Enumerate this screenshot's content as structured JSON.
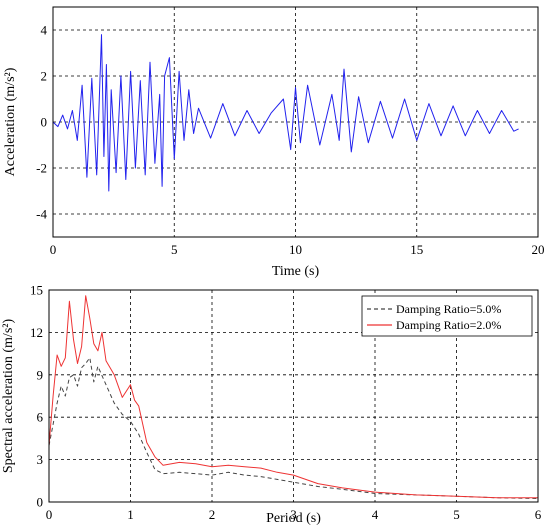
{
  "chart_data": [
    {
      "type": "line",
      "title": "",
      "xlabel": "Time (s)",
      "ylabel": "Acceleration  (m/s²)",
      "xlim": [
        0,
        20
      ],
      "ylim": [
        -5,
        5
      ],
      "xticks": [
        0,
        5,
        10,
        15,
        20
      ],
      "yticks": [
        -4,
        -2,
        0,
        2,
        4
      ],
      "x_tick_labels": [
        "0",
        "5",
        "10",
        "15",
        "20"
      ],
      "y_tick_labels": [
        "-4",
        "-2",
        "0",
        "2",
        "4"
      ],
      "grid": true,
      "colors": {
        "series": "#2222ee",
        "grid": "#000000",
        "frame": "#000000"
      },
      "series": [
        {
          "x": [
            0,
            0.2,
            0.4,
            0.6,
            0.8,
            1.0,
            1.2,
            1.4,
            1.6,
            1.8,
            2.0,
            2.1,
            2.2,
            2.3,
            2.4,
            2.6,
            2.8,
            3.0,
            3.2,
            3.4,
            3.6,
            3.8,
            4.0,
            4.2,
            4.4,
            4.5,
            4.6,
            4.8,
            5.0,
            5.2,
            5.4,
            5.6,
            5.8,
            6.0,
            6.5,
            7.0,
            7.5,
            8.0,
            8.5,
            9.0,
            9.5,
            9.8,
            10.0,
            10.2,
            10.5,
            11.0,
            11.5,
            11.8,
            12.0,
            12.3,
            12.6,
            13.0,
            13.5,
            14.0,
            14.5,
            15.0,
            15.5,
            16.0,
            16.5,
            17.0,
            17.5,
            18.0,
            18.5,
            19.0,
            19.2
          ],
          "values": [
            0,
            -0.2,
            0.3,
            -0.3,
            0.5,
            -0.8,
            1.6,
            -2.4,
            1.9,
            -2.3,
            3.8,
            -1.5,
            2.5,
            -3.0,
            1.4,
            -2.2,
            2.0,
            -2.5,
            2.2,
            -2.0,
            1.8,
            -2.3,
            2.6,
            -1.8,
            1.2,
            -2.8,
            2.0,
            2.8,
            -1.6,
            2.2,
            -0.8,
            1.4,
            -0.5,
            0.6,
            -0.7,
            0.8,
            -0.6,
            0.5,
            -0.5,
            0.4,
            1.0,
            -1.2,
            1.5,
            -0.9,
            1.6,
            -1.0,
            1.2,
            -0.8,
            2.3,
            -1.3,
            1.1,
            -0.9,
            0.9,
            -0.7,
            1.0,
            -0.8,
            0.8,
            -0.6,
            0.7,
            -0.6,
            0.5,
            -0.5,
            0.5,
            -0.4,
            -0.3
          ]
        }
      ]
    },
    {
      "type": "line",
      "title": "",
      "xlabel": "Period (s)",
      "ylabel": "Spectral acceleration (m/s²)",
      "xlim": [
        0,
        6
      ],
      "ylim": [
        0,
        15
      ],
      "xticks": [
        0,
        1,
        2,
        3,
        4,
        5,
        6
      ],
      "yticks": [
        0,
        3,
        6,
        9,
        12,
        15
      ],
      "x_tick_labels": [
        "0",
        "1",
        "2",
        "3",
        "4",
        "5",
        "6"
      ],
      "y_tick_labels": [
        "0",
        "3",
        "6",
        "9",
        "12",
        "15"
      ],
      "grid": true,
      "legend": "top-right",
      "series": [
        {
          "name": "Damping Ratio=5.0%",
          "style": "dashed",
          "color": "#444444",
          "x": [
            0,
            0.05,
            0.1,
            0.15,
            0.2,
            0.25,
            0.3,
            0.35,
            0.4,
            0.45,
            0.5,
            0.55,
            0.6,
            0.7,
            0.8,
            0.9,
            1.0,
            1.1,
            1.2,
            1.3,
            1.4,
            1.6,
            1.8,
            2.0,
            2.2,
            2.4,
            2.6,
            2.8,
            3.0,
            3.3,
            3.6,
            4.0,
            4.5,
            5.0,
            5.5,
            6.0
          ],
          "values": [
            4.0,
            5.5,
            7.0,
            8.2,
            7.5,
            8.8,
            9.0,
            8.2,
            9.5,
            9.8,
            10.2,
            8.5,
            9.6,
            8.3,
            7.0,
            6.2,
            5.7,
            4.8,
            3.5,
            2.3,
            2.0,
            2.1,
            2.0,
            1.9,
            2.1,
            1.9,
            1.8,
            1.6,
            1.4,
            1.1,
            0.9,
            0.6,
            0.5,
            0.4,
            0.3,
            0.25
          ]
        },
        {
          "name": "Damping Ratio=2.0%",
          "style": "solid",
          "color": "#ee3333",
          "x": [
            0,
            0.05,
            0.1,
            0.15,
            0.2,
            0.25,
            0.3,
            0.35,
            0.4,
            0.45,
            0.5,
            0.55,
            0.6,
            0.65,
            0.7,
            0.8,
            0.9,
            1.0,
            1.05,
            1.1,
            1.2,
            1.3,
            1.4,
            1.6,
            1.8,
            2.0,
            2.2,
            2.4,
            2.6,
            2.8,
            3.0,
            3.3,
            3.6,
            4.0,
            4.5,
            5.0,
            5.5,
            6.0
          ],
          "values": [
            4.0,
            7.5,
            10.4,
            9.6,
            10.2,
            14.2,
            11.5,
            9.8,
            11.0,
            14.6,
            13.0,
            11.2,
            10.7,
            12.0,
            10.0,
            9.0,
            7.4,
            8.3,
            7.2,
            6.8,
            4.2,
            3.2,
            2.6,
            2.8,
            2.7,
            2.5,
            2.6,
            2.5,
            2.4,
            2.1,
            1.9,
            1.3,
            1.0,
            0.7,
            0.5,
            0.4,
            0.3,
            0.3
          ]
        }
      ]
    }
  ]
}
